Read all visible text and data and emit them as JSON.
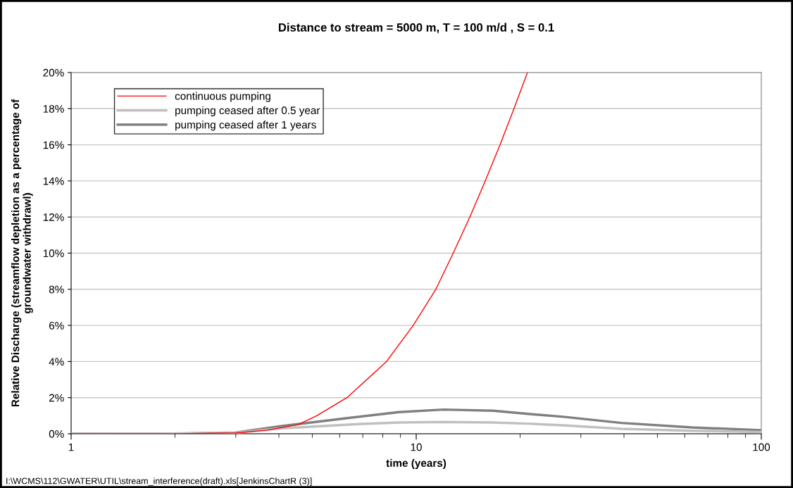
{
  "chart_data": {
    "type": "line",
    "title": "Distance to stream = 5000 m, T = 100 m/d , S = 0.1",
    "xlabel": "time (years)",
    "ylabel": "Relative Discharge (streamflow depletion as a percentage of\ngroundwater withdrawl)",
    "annotations": [
      "I:\\WCMS\\112\\GWATER\\UTIL\\stream_interference(draft).xls[JenkinsChartR (3)]"
    ],
    "log": "x",
    "xlim": [
      1,
      100
    ],
    "xticks": [
      1,
      10,
      100
    ],
    "ylim": [
      0,
      20
    ],
    "yticks": [
      {
        "value": 0,
        "label": "0%"
      },
      {
        "value": 2,
        "label": "2%"
      },
      {
        "value": 4,
        "label": "4%"
      },
      {
        "value": 6,
        "label": "6%"
      },
      {
        "value": 8,
        "label": "8%"
      },
      {
        "value": 10,
        "label": "10%"
      },
      {
        "value": 12,
        "label": "12%"
      },
      {
        "value": 14,
        "label": "14%"
      },
      {
        "value": 16,
        "label": "16%"
      },
      {
        "value": 18,
        "label": "18%"
      },
      {
        "value": 20,
        "label": "20%"
      }
    ],
    "grid": "y",
    "legend": "top left",
    "marker": "none",
    "line_style": "solid",
    "series": [
      {
        "name": "continuous pumping",
        "color": "#ff0000",
        "x": [
          1,
          2,
          3,
          3.7,
          4.54,
          5.15,
          6.3,
          8.2,
          9.8,
          11.4,
          12.8,
          14.3,
          15.85,
          17.5,
          19.2,
          21.0
        ],
        "values": [
          0,
          0,
          0.05,
          0.2,
          0.5,
          1,
          2,
          4,
          6,
          8,
          10,
          12,
          14,
          16,
          18,
          20
        ]
      },
      {
        "name": "pumping ceased after 0.5 year",
        "color": "#c0c0c0",
        "x": [
          1,
          2,
          3,
          4.08,
          6.5,
          8.9,
          12,
          16.7,
          21.1,
          26.7,
          39.4,
          63,
          100
        ],
        "values": [
          0,
          0.01,
          0.06,
          0.3,
          0.52,
          0.62,
          0.65,
          0.62,
          0.56,
          0.47,
          0.27,
          0.17,
          0.1
        ]
      },
      {
        "name": "pumping ceased after 1 years",
        "color": "#808080",
        "x": [
          1,
          2,
          3,
          4.08,
          6.5,
          8.9,
          12,
          16.7,
          21.1,
          26.7,
          39.4,
          63,
          100
        ],
        "values": [
          0,
          0.01,
          0.07,
          0.43,
          0.9,
          1.2,
          1.34,
          1.28,
          1.1,
          0.94,
          0.6,
          0.35,
          0.2
        ]
      }
    ]
  }
}
